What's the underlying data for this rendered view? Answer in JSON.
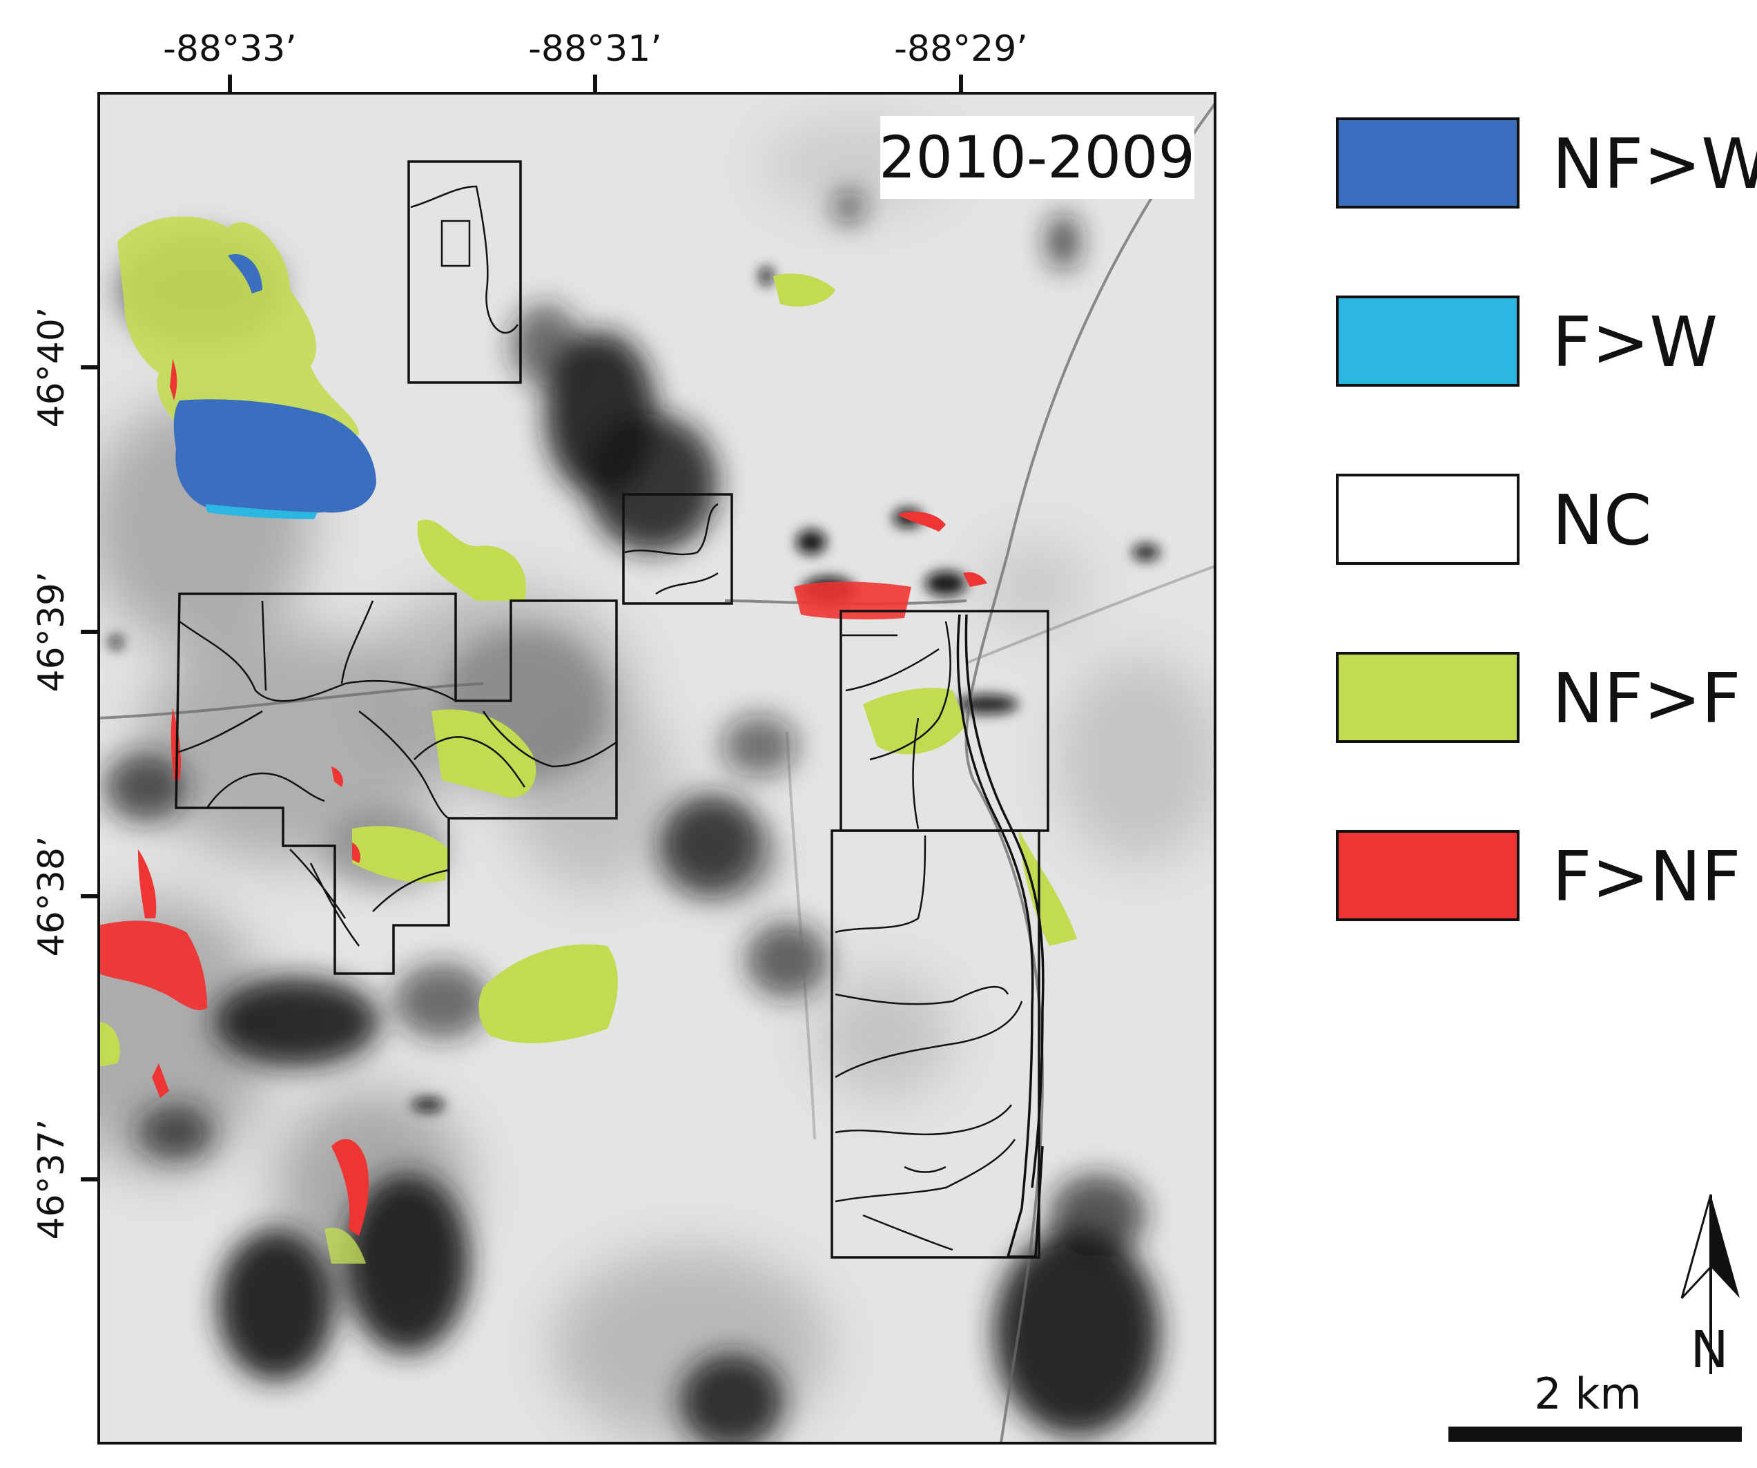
{
  "map": {
    "period_label": "2010-2009",
    "longitude_labels": [
      "-88°33’",
      "-88°31’",
      "-88°29’"
    ],
    "latitude_labels": [
      "46°40’",
      "46°39’",
      "46°38’",
      "46°37’"
    ],
    "scale_bar": {
      "label": "2 km"
    },
    "north_arrow": {
      "label": "N",
      "icon": "north-arrow-icon"
    }
  },
  "legend": {
    "items": [
      {
        "label": "NF>W",
        "color": "#3a6fbf"
      },
      {
        "label": "F>W",
        "color": "#2cb7e2"
      },
      {
        "label": "NC",
        "color": "#ffffff"
      },
      {
        "label": "NF>F",
        "color": "#c2dc52"
      },
      {
        "label": "F>NF",
        "color": "#ef3434"
      }
    ]
  },
  "colors": {
    "frame": "#111111",
    "imagery_light": "#e4e4e4",
    "imagery_dark": "#1a1a1a"
  }
}
